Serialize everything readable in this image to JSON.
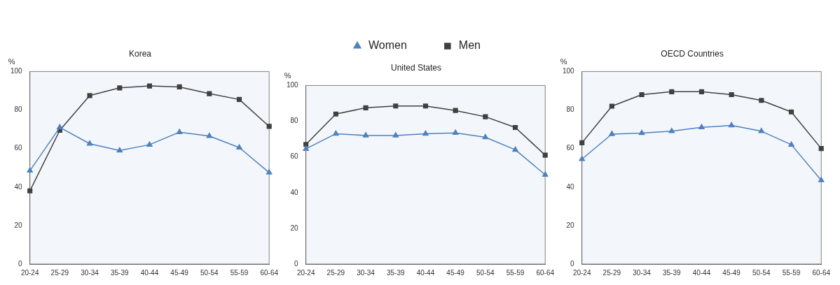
{
  "chart_data": [
    {
      "type": "line",
      "title": "Korea",
      "ylabel": "%",
      "categories": [
        "20-24",
        "25-29",
        "30-34",
        "35-39",
        "40-44",
        "45-49",
        "50-54",
        "55-59",
        "60-64"
      ],
      "ylim": [
        0,
        100
      ],
      "yticks": [
        0,
        20,
        40,
        60,
        80,
        100
      ],
      "grid": false,
      "series": [
        {
          "color": "#4f81bd",
          "marker": "triangle",
          "values": [
            48.5,
            71,
            62.5,
            59,
            62,
            68.5,
            66.5,
            60.5,
            47.5
          ]
        },
        {
          "color": "#404040",
          "marker": "square",
          "values": [
            38,
            69.5,
            87.5,
            91.5,
            92.5,
            92,
            88.5,
            85.5,
            71.5
          ]
        }
      ]
    },
    {
      "type": "line",
      "title": "United States",
      "ylabel": "%",
      "legend": "top",
      "categories": [
        "20-24",
        "25-29",
        "30-34",
        "35-39",
        "40-44",
        "45-49",
        "50-54",
        "55-59",
        "60-64"
      ],
      "ylim": [
        0,
        100
      ],
      "yticks": [
        0,
        20,
        40,
        60,
        80,
        100
      ],
      "grid": false,
      "series": [
        {
          "name": "Women",
          "color": "#4f81bd",
          "marker": "triangle",
          "values": [
            64.5,
            73,
            72,
            72,
            73,
            73.5,
            71,
            64,
            50
          ]
        },
        {
          "name": "Men",
          "color": "#404040",
          "marker": "square",
          "values": [
            67,
            84,
            87.5,
            88.5,
            88.5,
            86,
            82.5,
            76.5,
            61
          ]
        }
      ]
    },
    {
      "type": "line",
      "title": "OECD Countries",
      "ylabel": "%",
      "categories": [
        "20-24",
        "25-29",
        "30-34",
        "35-39",
        "40-44",
        "45-49",
        "50-54",
        "55-59",
        "60-64"
      ],
      "ylim": [
        0,
        100
      ],
      "yticks": [
        0,
        20,
        40,
        60,
        80,
        100
      ],
      "grid": false,
      "series": [
        {
          "color": "#4f81bd",
          "marker": "triangle",
          "values": [
            54.5,
            67.5,
            68,
            69,
            71,
            72,
            69,
            62,
            43.5
          ]
        },
        {
          "color": "#404040",
          "marker": "square",
          "values": [
            63,
            82,
            88,
            89.5,
            89.5,
            88,
            85,
            79,
            60
          ]
        }
      ]
    }
  ]
}
